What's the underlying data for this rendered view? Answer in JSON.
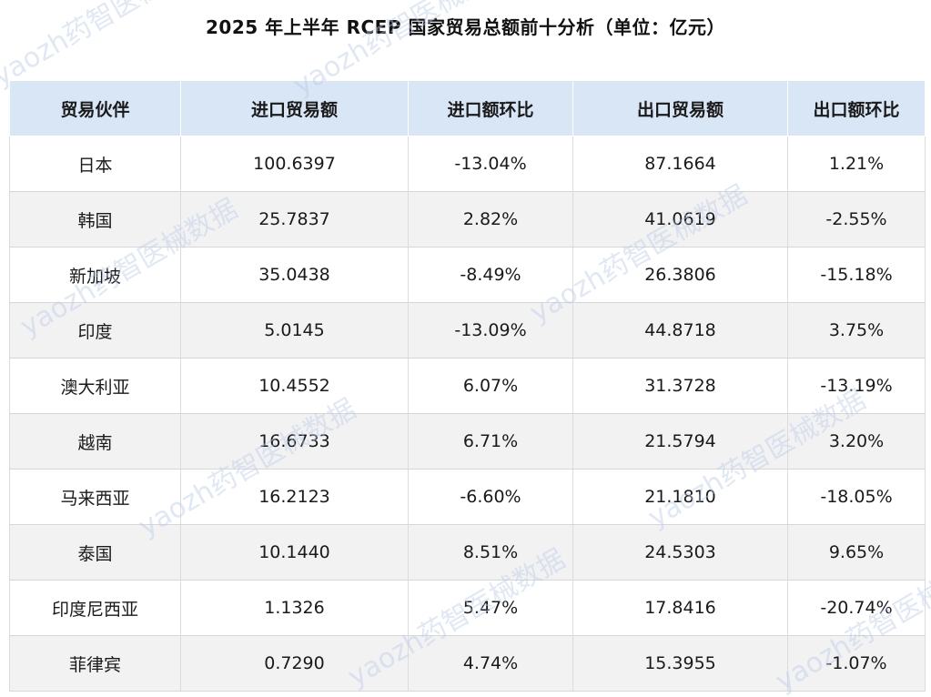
{
  "title": "2025 年上半年 RCEP 国家贸易总额前十分析（单位：亿元）",
  "watermark": "yaozh药智医械数据",
  "colors": {
    "header_bg": "#d9e6f5",
    "row_alt_bg": "#f2f2f2",
    "row_bg": "#ffffff",
    "watermark": "#b9cde6"
  },
  "chart_data": {
    "type": "table",
    "title": "2025 年上半年 RCEP 国家贸易总额前十分析（单位：亿元）",
    "columns": [
      "贸易伙伴",
      "进口贸易额",
      "进口额环比",
      "出口贸易额",
      "出口额环比"
    ],
    "rows": [
      [
        "日本",
        "100.6397",
        "-13.04%",
        "87.1664",
        "1.21%"
      ],
      [
        "韩国",
        "25.7837",
        "2.82%",
        "41.0619",
        "-2.55%"
      ],
      [
        "新加坡",
        "35.0438",
        "-8.49%",
        "26.3806",
        "-15.18%"
      ],
      [
        "印度",
        "5.0145",
        "-13.09%",
        "44.8718",
        "3.75%"
      ],
      [
        "澳大利亚",
        "10.4552",
        "6.07%",
        "31.3728",
        "-13.19%"
      ],
      [
        "越南",
        "16.6733",
        "6.71%",
        "21.5794",
        "3.20%"
      ],
      [
        "马来西亚",
        "16.2123",
        "-6.60%",
        "21.1810",
        "-18.05%"
      ],
      [
        "泰国",
        "10.1440",
        "8.51%",
        "24.5303",
        "9.65%"
      ],
      [
        "印度尼西亚",
        "1.1326",
        "5.47%",
        "17.8416",
        "-20.74%"
      ],
      [
        "菲律宾",
        "0.7290",
        "4.74%",
        "15.3955",
        "-1.07%"
      ]
    ]
  }
}
